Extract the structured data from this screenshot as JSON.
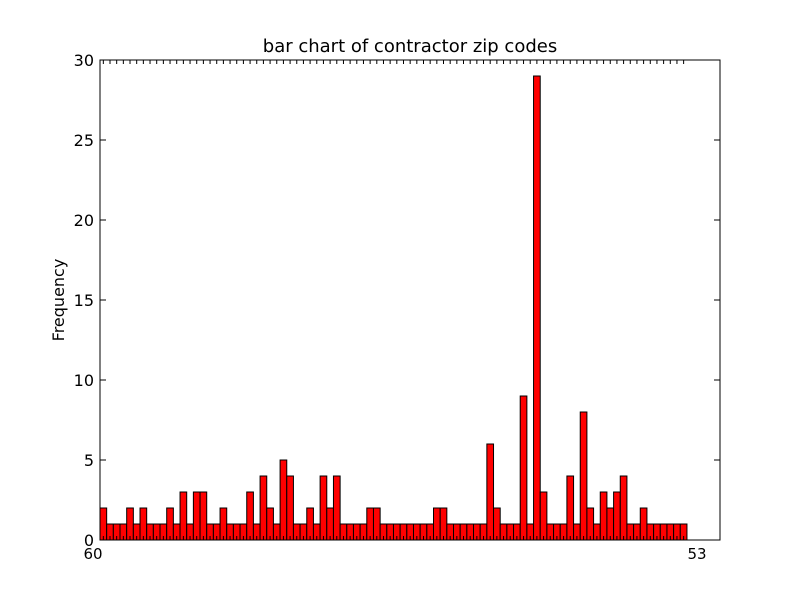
{
  "chart_data": {
    "type": "bar",
    "title": "bar chart of contractor zip codes",
    "xlabel": "",
    "ylabel": "Frequency",
    "ylim": [
      0,
      30
    ],
    "yticks": [
      0,
      5,
      10,
      15,
      20,
      25,
      30
    ],
    "grid": false,
    "bar_color": "#ff0000",
    "edge_color": "#000000",
    "first_xtick_label": "60",
    "last_xtick_label": "53",
    "values": [
      2,
      1,
      1,
      1,
      2,
      1,
      2,
      1,
      1,
      1,
      2,
      1,
      3,
      1,
      3,
      3,
      1,
      1,
      2,
      1,
      1,
      1,
      3,
      1,
      4,
      2,
      1,
      5,
      4,
      1,
      1,
      2,
      1,
      4,
      2,
      4,
      1,
      1,
      1,
      1,
      2,
      2,
      1,
      1,
      1,
      1,
      1,
      1,
      1,
      1,
      2,
      2,
      1,
      1,
      1,
      1,
      1,
      1,
      6,
      2,
      1,
      1,
      1,
      9,
      1,
      29,
      3,
      1,
      1,
      1,
      4,
      1,
      8,
      2,
      1,
      3,
      2,
      3,
      4,
      1,
      1,
      2,
      1,
      1,
      1,
      1,
      1,
      1
    ]
  }
}
